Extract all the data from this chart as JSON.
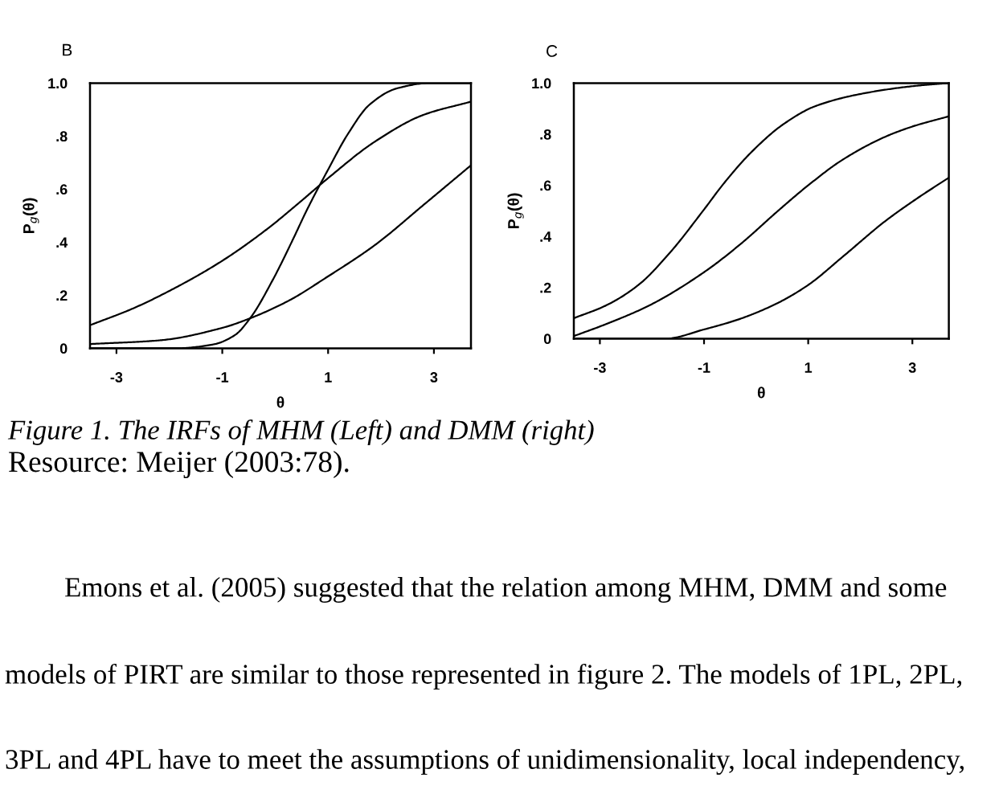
{
  "chart_data": [
    {
      "type": "line",
      "title": "B",
      "xlabel": "θ",
      "ylabel": "P$_{g}$(θ)",
      "xlim": [
        -3.5,
        3.7
      ],
      "ylim": [
        0,
        1
      ],
      "xticks": [
        -3,
        -1,
        1,
        3
      ],
      "yticks": [
        0,
        {
          "value": 0.2,
          "label": ".2"
        },
        {
          "value": 0.4,
          "label": ".4"
        },
        {
          "value": 0.6,
          "label": ".6"
        },
        {
          "value": 0.8,
          "label": ".8"
        },
        {
          "value": 1,
          "label": "1.0"
        }
      ],
      "series": [
        {
          "color": "#000000",
          "x": [
            -3.5,
            -1.87,
            -1.16,
            -0.76,
            -0.45,
            -0.04,
            0.31,
            0.62,
            0.99,
            1.38,
            1.79,
            2.3,
            2.91,
            3.7
          ],
          "values": [
            0.0,
            0.0,
            0.015,
            0.05,
            0.12,
            0.26,
            0.4,
            0.53,
            0.67,
            0.81,
            0.92,
            0.98,
            1.0,
            1.0
          ]
        },
        {
          "color": "#000000",
          "x": [
            -3.5,
            -2.69,
            -1.87,
            -1,
            -0.15,
            0.46,
            0.99,
            1.89,
            2.8,
            3.7
          ],
          "values": [
            0.087,
            0.15,
            0.23,
            0.33,
            0.45,
            0.55,
            0.64,
            0.78,
            0.88,
            0.93
          ]
        },
        {
          "color": "#000000",
          "x": [
            -3.5,
            -2.18,
            -1,
            -0.45,
            0.26,
            0.99,
            1.89,
            2.8,
            3.7
          ],
          "values": [
            0.016,
            0.03,
            0.077,
            0.115,
            0.18,
            0.27,
            0.39,
            0.54,
            0.69
          ]
        }
      ],
      "annotations": [
        "Figure 1. The IRFs of MHM (Left) and DMM (right)",
        "Resource: Meijer (2003:78).",
        "Emons et al. (2005) suggested that the relation among MHM, DMM and some",
        "models of PIRT are similar to those represented in figure 2. The models of 1PL, 2PL,",
        "3PL and 4PL have to meet the assumptions of unidimensionality, local independency,"
      ]
    },
    {
      "type": "line",
      "title": "C",
      "xlabel": "θ",
      "ylabel": "P$_{g}$(θ)",
      "xlim": [
        -3.5,
        3.7
      ],
      "ylim": [
        0,
        1
      ],
      "xticks": [
        -3,
        -1,
        1,
        3
      ],
      "yticks": [
        0,
        {
          "value": 0.2,
          "label": ".2"
        },
        {
          "value": 0.4,
          "label": ".4"
        },
        {
          "value": 0.6,
          "label": ".6"
        },
        {
          "value": 0.8,
          "label": ".8"
        },
        {
          "value": 1,
          "label": "1.0"
        }
      ],
      "series": [
        {
          "color": "#000000",
          "x": [
            -3.5,
            -2.88,
            -2.26,
            -1.64,
            -1.02,
            -0.61,
            -0.09,
            0.53,
            1.14,
            2.07,
            3.1,
            3.7
          ],
          "values": [
            0.08,
            0.13,
            0.21,
            0.34,
            0.5,
            0.61,
            0.73,
            0.84,
            0.91,
            0.96,
            0.99,
            1.0
          ]
        },
        {
          "color": "#000000",
          "x": [
            -3.5,
            -2.88,
            -2.05,
            -1,
            -0.3,
            0.42,
            1,
            1.66,
            2.48,
            3,
            3.7
          ],
          "values": [
            0.01,
            0.057,
            0.13,
            0.26,
            0.37,
            0.5,
            0.6,
            0.7,
            0.79,
            0.83,
            0.87
          ]
        },
        {
          "color": "#000000",
          "x": [
            -3.5,
            -1.74,
            -1,
            -0.3,
            0.42,
            1,
            1.66,
            2.48,
            3.1,
            3.7
          ],
          "values": [
            0.0,
            0.0,
            0.036,
            0.078,
            0.14,
            0.21,
            0.32,
            0.46,
            0.55,
            0.63
          ]
        }
      ]
    }
  ]
}
